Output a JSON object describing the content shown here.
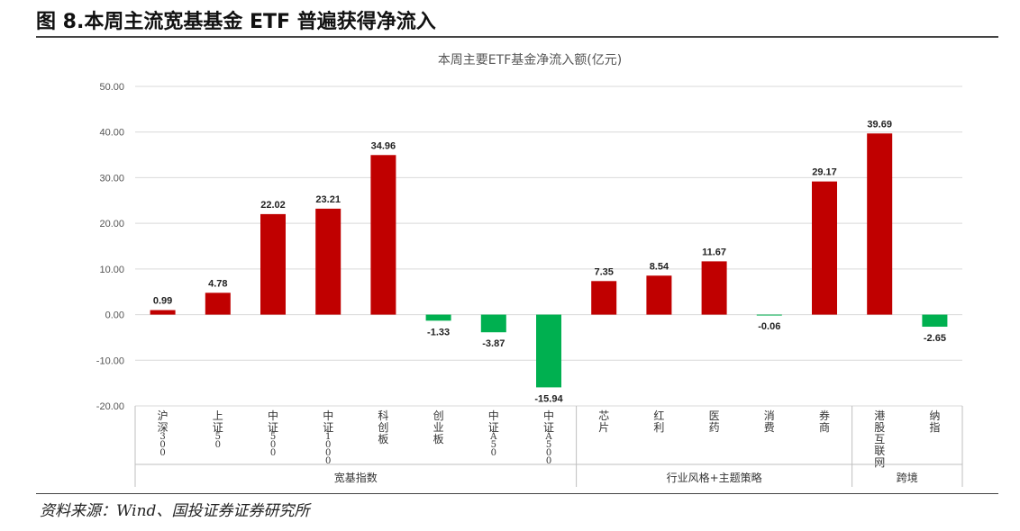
{
  "figure": {
    "title": "图 8.本周主流宽基基金 ETF 普遍获得净流入",
    "source": "资料来源：Wind、国投证券证券研究所"
  },
  "chart_data": {
    "type": "bar",
    "title": "本周主要ETF基金净流入额(亿元)",
    "categories": [
      "沪深300",
      "上证50",
      "中证500",
      "中证1000",
      "科创板",
      "创业板",
      "中证A50",
      "中证A500",
      "芯片",
      "红利",
      "医药",
      "消费",
      "券商",
      "港股互联网",
      "纳指"
    ],
    "values": [
      0.99,
      4.78,
      22.02,
      23.21,
      34.96,
      -1.33,
      -3.87,
      -15.94,
      7.35,
      8.54,
      11.67,
      -0.06,
      29.17,
      39.69,
      -2.65
    ],
    "value_labels": [
      "0.99",
      "4.78",
      "22.02",
      "23.21",
      "34.96",
      "-1.33",
      "-3.87",
      "-15.94",
      "7.35",
      "8.54",
      "11.67",
      "-0.06",
      "29.17",
      "39.69",
      "-2.65"
    ],
    "groups": [
      {
        "label": "宽基指数",
        "count": 8
      },
      {
        "label": "行业风格+主题策略",
        "count": 5
      },
      {
        "label": "跨境",
        "count": 2
      }
    ],
    "yticks": [
      "50.00",
      "40.00",
      "30.00",
      "20.00",
      "10.00",
      "0.00",
      "-10.00",
      "-20.00"
    ],
    "ylim": [
      -20,
      50
    ],
    "grid": true,
    "colors": {
      "positive": "#c00000",
      "negative": "#00b050"
    }
  }
}
